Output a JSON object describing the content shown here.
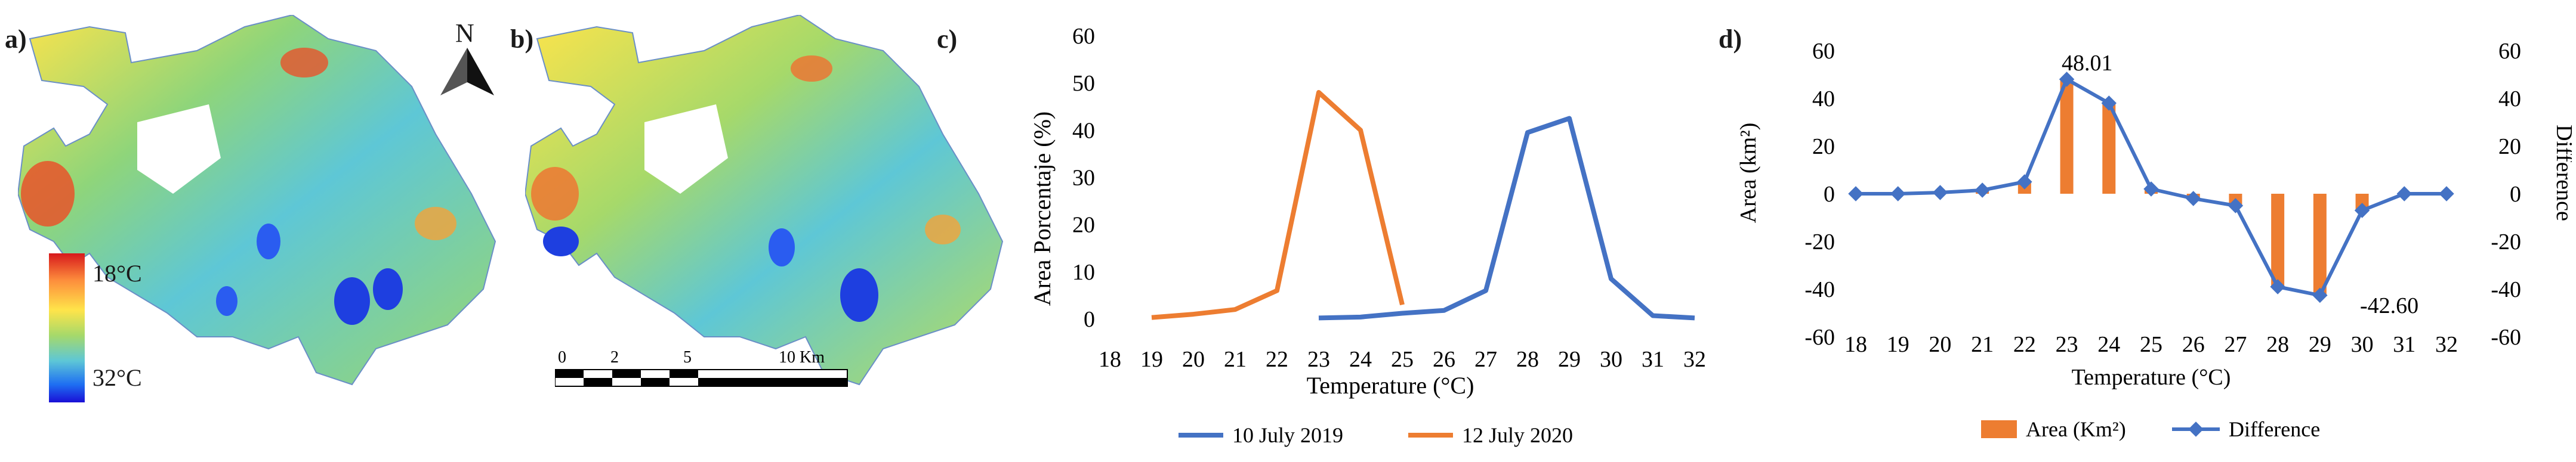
{
  "panels": {
    "a": "a)",
    "b": "b)",
    "c": "c)",
    "d": "d)"
  },
  "map_legend": {
    "top_label": "18°C",
    "bottom_label": "32°C",
    "north_label": "N",
    "scale_ticks": [
      "0",
      "2",
      "5",
      "10 Km"
    ],
    "colors": [
      "#d7191c",
      "#fd8d3c",
      "#ffe44a",
      "#a6d96a",
      "#5ec7d6",
      "#1e6ff2",
      "#1a0fd6"
    ]
  },
  "chart_data": [
    {
      "type": "line",
      "panel": "c",
      "xlabel": "Temperature (°C)",
      "ylabel": "Area Porcentaje (%)",
      "x": [
        18,
        19,
        20,
        21,
        22,
        23,
        24,
        25,
        26,
        27,
        28,
        29,
        30,
        31,
        32
      ],
      "ylim": [
        0,
        60
      ],
      "yticks": [
        0,
        10,
        20,
        30,
        40,
        50,
        60
      ],
      "series": [
        {
          "name": "10 July 2019",
          "color": "#4472c4",
          "x": [
            23,
            24,
            25,
            26,
            27,
            28,
            29,
            30,
            31,
            32
          ],
          "values": [
            0.2,
            0.4,
            1.2,
            1.8,
            6.0,
            39.5,
            42.5,
            8.5,
            0.7,
            0.2
          ]
        },
        {
          "name": "12 July 2020",
          "color": "#ed7d31",
          "x": [
            19,
            20,
            21,
            22,
            23,
            24,
            25
          ],
          "values": [
            0.3,
            1.0,
            2.0,
            6.0,
            48.0,
            40.0,
            3.0
          ]
        }
      ],
      "legend": "bottom"
    },
    {
      "type": "bar+line",
      "panel": "d",
      "xlabel": "Temperature (°C)",
      "ylabel_left": "Area (km²)",
      "ylabel_right": "Difference",
      "x": [
        18,
        19,
        20,
        21,
        22,
        23,
        24,
        25,
        26,
        27,
        28,
        29,
        30,
        31,
        32
      ],
      "ylim": [
        -60,
        60
      ],
      "yticks": [
        -60,
        -40,
        -20,
        0,
        20,
        40,
        60
      ],
      "series": [
        {
          "name": "Area (Km²)",
          "kind": "bar",
          "color": "#ed7d31",
          "values": [
            0,
            0,
            0.5,
            1.5,
            5,
            48.01,
            38,
            2,
            -2,
            -5,
            -39,
            -42.6,
            -7,
            0,
            0
          ]
        },
        {
          "name": "Difference",
          "kind": "line",
          "color": "#4472c4",
          "values": [
            0,
            0,
            0.5,
            1.5,
            5,
            48.01,
            38,
            2,
            -2,
            -5,
            -39,
            -42.6,
            -7,
            0,
            0
          ]
        }
      ],
      "annotations": [
        "48.01",
        "-42.60"
      ],
      "legend": "bottom"
    }
  ]
}
